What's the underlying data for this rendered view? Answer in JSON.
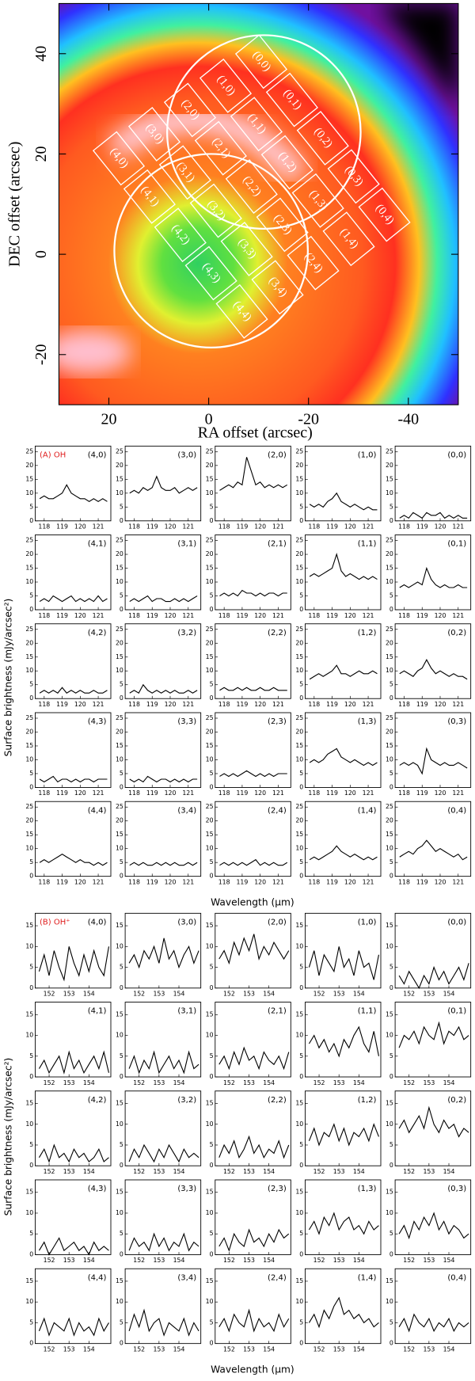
{
  "chart_data": [
    {
      "type": "map",
      "xlabel": "RA offset (arcsec)",
      "ylabel": "DEC offset (arcsec)",
      "xlim": [
        30,
        -50
      ],
      "ylim": [
        -30,
        50
      ],
      "xticks": [
        20,
        0,
        -20,
        -40
      ],
      "yticks": [
        -20,
        0,
        20,
        40
      ],
      "apertures": [
        [
          "(0,0)",
          "(1,0)",
          "(2,0)",
          "(3,0)",
          "(4,0)"
        ],
        [
          "(0,1)",
          "(1,1)",
          "(2,1)",
          "(3,1)",
          "(4,1)"
        ],
        [
          "(0,2)",
          "(1,2)",
          "(2,2)",
          "(3,2)",
          "(4,2)"
        ],
        [
          "(0,3)",
          "(1,3)",
          "(2,3)",
          "(3,3)",
          "(4,3)"
        ],
        [
          "(0,4)",
          "(1,4)",
          "(2,4)",
          "(3,4)",
          "(4,4)"
        ]
      ]
    },
    {
      "type": "line",
      "tag": "(A) OH",
      "tag_color": "#e02020",
      "color": "#000000",
      "xlabel": "Wavelength (μm)",
      "ylabel": "Surface brightness (mJy/arcsec²)",
      "xlim": [
        117.5,
        121.7
      ],
      "ylim": [
        0,
        27
      ],
      "xticks": [
        118,
        119,
        120,
        121
      ],
      "yticks": [
        0,
        5,
        10,
        15,
        20,
        25
      ],
      "x": [
        117.75,
        118,
        118.25,
        118.5,
        118.75,
        119,
        119.25,
        119.5,
        119.75,
        120,
        120.25,
        120.5,
        120.75,
        121,
        121.25,
        121.5
      ],
      "panels": [
        {
          "label": "(4,0)",
          "values": [
            8,
            9,
            8,
            8,
            9,
            10,
            13,
            10,
            9,
            8,
            8,
            7,
            8,
            7,
            8,
            7
          ]
        },
        {
          "label": "(3,0)",
          "values": [
            10,
            11,
            10,
            12,
            11,
            12,
            16,
            12,
            11,
            11,
            12,
            10,
            11,
            12,
            11,
            12
          ]
        },
        {
          "label": "(2,0)",
          "values": [
            11,
            12,
            13,
            12,
            14,
            13,
            23,
            18,
            13,
            14,
            12,
            13,
            12,
            13,
            12,
            13
          ]
        },
        {
          "label": "(1,0)",
          "values": [
            6,
            5,
            6,
            5,
            7,
            8,
            10,
            7,
            6,
            5,
            6,
            5,
            4,
            5,
            4,
            4
          ]
        },
        {
          "label": "(0,0)",
          "values": [
            1,
            2,
            1,
            3,
            2,
            1,
            3,
            2,
            2,
            3,
            1,
            2,
            1,
            2,
            1,
            1
          ]
        },
        {
          "label": "(4,1)",
          "values": [
            3,
            4,
            3,
            5,
            4,
            3,
            4,
            5,
            3,
            4,
            3,
            4,
            3,
            5,
            3,
            4
          ]
        },
        {
          "label": "(3,1)",
          "values": [
            3,
            4,
            3,
            4,
            5,
            3,
            4,
            4,
            3,
            3,
            4,
            3,
            4,
            3,
            4,
            5
          ]
        },
        {
          "label": "(2,1)",
          "values": [
            5,
            6,
            5,
            6,
            5,
            7,
            6,
            6,
            5,
            6,
            5,
            6,
            6,
            5,
            6,
            6
          ]
        },
        {
          "label": "(1,1)",
          "values": [
            12,
            13,
            12,
            13,
            14,
            15,
            20,
            14,
            12,
            13,
            12,
            11,
            12,
            11,
            12,
            11
          ]
        },
        {
          "label": "(0,1)",
          "values": [
            8,
            9,
            8,
            9,
            10,
            9,
            15,
            11,
            9,
            8,
            9,
            8,
            8,
            9,
            8,
            8
          ]
        },
        {
          "label": "(4,2)",
          "values": [
            2,
            3,
            2,
            3,
            2,
            4,
            2,
            3,
            2,
            3,
            2,
            2,
            3,
            2,
            2,
            3
          ]
        },
        {
          "label": "(3,2)",
          "values": [
            2,
            3,
            2,
            5,
            3,
            2,
            3,
            2,
            3,
            2,
            3,
            2,
            2,
            3,
            2,
            3
          ]
        },
        {
          "label": "(2,2)",
          "values": [
            3,
            4,
            3,
            3,
            4,
            3,
            4,
            3,
            3,
            4,
            3,
            3,
            4,
            3,
            3,
            3
          ]
        },
        {
          "label": "(1,2)",
          "values": [
            7,
            8,
            9,
            8,
            9,
            10,
            12,
            9,
            9,
            8,
            9,
            10,
            9,
            9,
            10,
            9
          ]
        },
        {
          "label": "(0,2)",
          "values": [
            9,
            10,
            9,
            8,
            10,
            11,
            14,
            11,
            9,
            10,
            9,
            8,
            9,
            8,
            8,
            7
          ]
        },
        {
          "label": "(4,3)",
          "values": [
            3,
            2,
            3,
            4,
            2,
            3,
            3,
            2,
            3,
            2,
            3,
            3,
            2,
            3,
            3,
            3
          ]
        },
        {
          "label": "(3,3)",
          "values": [
            3,
            2,
            3,
            2,
            4,
            3,
            2,
            3,
            3,
            2,
            3,
            2,
            3,
            2,
            3,
            3
          ]
        },
        {
          "label": "(2,3)",
          "values": [
            4,
            5,
            4,
            5,
            4,
            5,
            6,
            5,
            4,
            5,
            4,
            5,
            4,
            5,
            5,
            5
          ]
        },
        {
          "label": "(1,3)",
          "values": [
            9,
            10,
            9,
            10,
            12,
            13,
            14,
            11,
            10,
            9,
            10,
            9,
            8,
            9,
            8,
            9
          ]
        },
        {
          "label": "(0,3)",
          "values": [
            8,
            9,
            8,
            9,
            8,
            5,
            14,
            10,
            9,
            8,
            9,
            8,
            8,
            9,
            8,
            7
          ]
        },
        {
          "label": "(4,4)",
          "values": [
            5,
            6,
            5,
            6,
            7,
            8,
            7,
            6,
            5,
            6,
            5,
            5,
            4,
            5,
            4,
            5
          ]
        },
        {
          "label": "(3,4)",
          "values": [
            4,
            5,
            4,
            5,
            4,
            4,
            5,
            4,
            5,
            4,
            5,
            4,
            4,
            5,
            4,
            5
          ]
        },
        {
          "label": "(2,4)",
          "values": [
            4,
            5,
            4,
            5,
            4,
            5,
            4,
            5,
            6,
            4,
            5,
            4,
            5,
            4,
            4,
            5
          ]
        },
        {
          "label": "(1,4)",
          "values": [
            6,
            7,
            6,
            7,
            8,
            9,
            11,
            9,
            8,
            7,
            8,
            7,
            6,
            7,
            6,
            7
          ]
        },
        {
          "label": "(0,4)",
          "values": [
            7,
            8,
            9,
            8,
            10,
            11,
            13,
            11,
            9,
            10,
            9,
            8,
            7,
            8,
            6,
            7
          ]
        }
      ]
    },
    {
      "type": "line",
      "tag": "(B) OH⁺",
      "tag_color": "#e02020",
      "color": "#000000",
      "xlabel": "Wavelength (μm)",
      "ylabel": "Surface brightness (mJy/arcsec²)",
      "xlim": [
        151.3,
        155.1
      ],
      "ylim": [
        0,
        18
      ],
      "xticks": [
        152,
        153,
        154
      ],
      "yticks": [
        0,
        5,
        10,
        15
      ],
      "x": [
        151.5,
        151.75,
        152,
        152.25,
        152.5,
        152.75,
        153,
        153.25,
        153.5,
        153.75,
        154,
        154.25,
        154.5,
        154.75,
        155
      ],
      "panels": [
        {
          "label": "(4,0)",
          "values": [
            4,
            8,
            3,
            9,
            5,
            2,
            10,
            6,
            3,
            8,
            4,
            9,
            5,
            3,
            10
          ]
        },
        {
          "label": "(3,0)",
          "values": [
            6,
            8,
            5,
            9,
            7,
            10,
            6,
            12,
            7,
            9,
            5,
            8,
            10,
            6,
            9
          ]
        },
        {
          "label": "(2,0)",
          "values": [
            7,
            9,
            6,
            11,
            8,
            12,
            9,
            13,
            7,
            10,
            8,
            11,
            9,
            7,
            9
          ]
        },
        {
          "label": "(1,0)",
          "values": [
            5,
            9,
            3,
            8,
            6,
            4,
            10,
            5,
            7,
            3,
            9,
            5,
            6,
            2,
            8
          ]
        },
        {
          "label": "(0,0)",
          "values": [
            3,
            1,
            4,
            2,
            0,
            3,
            1,
            5,
            2,
            4,
            1,
            3,
            5,
            2,
            6
          ]
        },
        {
          "label": "(4,1)",
          "values": [
            2,
            4,
            1,
            3,
            5,
            1,
            6,
            2,
            4,
            1,
            3,
            5,
            2,
            6,
            1
          ]
        },
        {
          "label": "(3,1)",
          "values": [
            2,
            5,
            1,
            4,
            2,
            6,
            1,
            3,
            5,
            2,
            4,
            1,
            6,
            2,
            3
          ]
        },
        {
          "label": "(2,1)",
          "values": [
            3,
            5,
            2,
            6,
            3,
            7,
            4,
            5,
            2,
            6,
            4,
            3,
            5,
            2,
            6
          ]
        },
        {
          "label": "(1,1)",
          "values": [
            8,
            10,
            7,
            9,
            6,
            8,
            5,
            9,
            7,
            10,
            12,
            8,
            6,
            11,
            5
          ]
        },
        {
          "label": "(0,1)",
          "values": [
            7,
            10,
            9,
            11,
            8,
            12,
            10,
            9,
            13,
            8,
            11,
            10,
            12,
            9,
            10
          ]
        },
        {
          "label": "(4,2)",
          "values": [
            2,
            4,
            1,
            5,
            2,
            3,
            1,
            4,
            2,
            3,
            1,
            2,
            4,
            1,
            2
          ]
        },
        {
          "label": "(3,2)",
          "values": [
            1,
            4,
            2,
            5,
            3,
            1,
            4,
            2,
            5,
            3,
            1,
            4,
            2,
            3,
            2
          ]
        },
        {
          "label": "(2,2)",
          "values": [
            2,
            5,
            3,
            6,
            2,
            4,
            7,
            3,
            5,
            2,
            4,
            3,
            6,
            2,
            5
          ]
        },
        {
          "label": "(1,2)",
          "values": [
            6,
            9,
            5,
            8,
            7,
            10,
            6,
            9,
            5,
            8,
            7,
            9,
            6,
            10,
            7
          ]
        },
        {
          "label": "(0,2)",
          "values": [
            9,
            11,
            8,
            10,
            12,
            9,
            14,
            10,
            8,
            11,
            9,
            10,
            7,
            9,
            8
          ]
        },
        {
          "label": "(4,3)",
          "values": [
            1,
            3,
            0,
            2,
            4,
            1,
            2,
            3,
            1,
            2,
            0,
            3,
            1,
            2,
            1
          ]
        },
        {
          "label": "(3,3)",
          "values": [
            1,
            4,
            2,
            3,
            1,
            5,
            2,
            4,
            1,
            3,
            2,
            5,
            1,
            3,
            2
          ]
        },
        {
          "label": "(2,3)",
          "values": [
            2,
            4,
            1,
            5,
            3,
            2,
            6,
            3,
            4,
            2,
            5,
            3,
            6,
            4,
            5
          ]
        },
        {
          "label": "(1,3)",
          "values": [
            6,
            8,
            5,
            9,
            7,
            10,
            6,
            8,
            9,
            6,
            7,
            5,
            8,
            6,
            7
          ]
        },
        {
          "label": "(0,3)",
          "values": [
            5,
            7,
            4,
            8,
            6,
            9,
            7,
            10,
            6,
            8,
            5,
            7,
            6,
            4,
            5
          ]
        },
        {
          "label": "(4,4)",
          "values": [
            3,
            6,
            2,
            5,
            4,
            3,
            6,
            2,
            5,
            3,
            4,
            2,
            6,
            3,
            5
          ]
        },
        {
          "label": "(3,4)",
          "values": [
            3,
            7,
            4,
            8,
            3,
            5,
            6,
            2,
            5,
            4,
            3,
            6,
            2,
            5,
            3
          ]
        },
        {
          "label": "(2,4)",
          "values": [
            4,
            6,
            3,
            7,
            5,
            4,
            8,
            3,
            6,
            4,
            5,
            3,
            7,
            4,
            6
          ]
        },
        {
          "label": "(1,4)",
          "values": [
            5,
            7,
            4,
            8,
            6,
            9,
            11,
            7,
            8,
            6,
            7,
            5,
            6,
            4,
            5
          ]
        },
        {
          "label": "(0,4)",
          "values": [
            4,
            6,
            3,
            7,
            5,
            4,
            6,
            3,
            5,
            4,
            6,
            3,
            5,
            4,
            5
          ]
        }
      ]
    }
  ]
}
